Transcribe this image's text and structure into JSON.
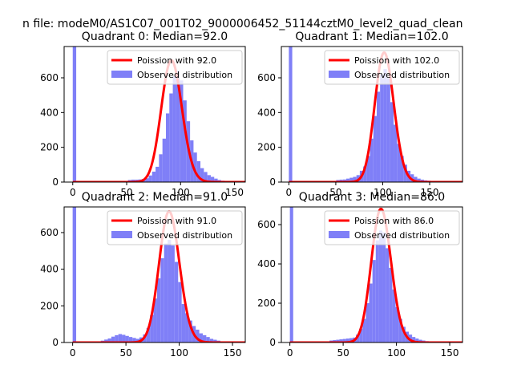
{
  "figure": {
    "suptitle": "n file: modeM0/AS1C07_001T02_9000006452_51144cztM0_level2_quad_clean"
  },
  "colors": {
    "fit_line": "#ff0000",
    "histogram": "#7f7ff7",
    "axes": "#000000",
    "legend_border": "#cccccc"
  },
  "chart_data": [
    {
      "type": "bar",
      "title": "Quadrant 0: Median=92.0",
      "xlim": [
        -8,
        160
      ],
      "ylim": [
        0,
        780
      ],
      "xticks": [
        0,
        50,
        100,
        150
      ],
      "yticks": [
        0,
        200,
        400,
        600
      ],
      "legend_position": "top-right",
      "bin_width": 3.2,
      "histogram": {
        "name": "Observed distribution",
        "x": [
          0,
          3.2,
          6.4,
          9.6,
          12.8,
          16,
          19.2,
          22.4,
          25.6,
          28.8,
          32,
          35.2,
          38.4,
          41.6,
          44.8,
          48,
          51.2,
          54.4,
          57.6,
          60.8,
          64,
          67.2,
          70.4,
          73.6,
          76.8,
          80,
          83.2,
          86.4,
          89.6,
          92.8,
          96,
          99.2,
          102.4,
          105.6,
          108.8,
          112,
          115.2,
          118.4,
          121.6,
          124.8,
          128,
          131.2,
          134.4,
          137.6,
          140.8,
          144,
          147.2,
          150.4
        ],
        "values": [
          780,
          0,
          0,
          0,
          0,
          0,
          0,
          0,
          0,
          0,
          0,
          0,
          0,
          0,
          0,
          0,
          12,
          14,
          14,
          15,
          18,
          22,
          38,
          60,
          88,
          160,
          250,
          395,
          510,
          610,
          640,
          585,
          470,
          350,
          240,
          170,
          120,
          80,
          58,
          40,
          30,
          20,
          12,
          8,
          5,
          3,
          2,
          2
        ]
      },
      "fit": {
        "name": "Poission with 92.0",
        "lambda": 92.0,
        "scale": 700
      }
    },
    {
      "type": "bar",
      "title": "Quadrant 1: Median=102.0",
      "xlim": [
        -8,
        185
      ],
      "ylim": [
        0,
        780
      ],
      "xticks": [
        0,
        50,
        100,
        150
      ],
      "yticks": [
        0,
        200,
        400,
        600
      ],
      "legend_position": "top-right",
      "bin_width": 3.6,
      "histogram": {
        "name": "Observed distribution",
        "x": [
          0,
          3.6,
          7.2,
          10.8,
          14.4,
          18,
          21.6,
          25.2,
          28.8,
          32.4,
          36,
          39.6,
          43.2,
          46.8,
          50.4,
          54,
          57.6,
          61.2,
          64.8,
          68.4,
          72,
          75.6,
          79.2,
          82.8,
          86.4,
          90,
          93.6,
          97.2,
          100.8,
          104.4,
          108,
          111.6,
          115.2,
          118.8,
          122.4,
          126,
          129.6,
          133.2,
          136.8,
          140.4,
          144,
          147.6,
          151.2,
          154.8,
          158.4,
          162,
          165.6,
          169.2
        ],
        "values": [
          780,
          0,
          0,
          0,
          0,
          0,
          0,
          0,
          0,
          0,
          0,
          0,
          0,
          0,
          12,
          14,
          15,
          20,
          25,
          30,
          40,
          65,
          90,
          150,
          250,
          380,
          520,
          620,
          650,
          600,
          460,
          330,
          220,
          150,
          100,
          65,
          45,
          30,
          20,
          14,
          10,
          8,
          6,
          4,
          3,
          2,
          2,
          1
        ]
      },
      "fit": {
        "name": "Poission with 102.0",
        "lambda": 102.0,
        "scale": 745
      }
    },
    {
      "type": "bar",
      "title": "Quadrant 2: Median=91.0",
      "xlim": [
        -8,
        162
      ],
      "ylim": [
        0,
        740
      ],
      "xticks": [
        0,
        50,
        100,
        150
      ],
      "yticks": [
        0,
        200,
        400,
        600
      ],
      "legend_position": "top-right",
      "bin_width": 3.3,
      "histogram": {
        "name": "Observed distribution",
        "x": [
          0,
          3.3,
          6.6,
          9.9,
          13.2,
          16.5,
          19.8,
          23.1,
          26.4,
          29.7,
          33,
          36.3,
          39.6,
          42.9,
          46.2,
          49.5,
          52.8,
          56.1,
          59.4,
          62.7,
          66,
          69.3,
          72.6,
          75.9,
          79.2,
          82.5,
          85.8,
          89.1,
          92.4,
          95.7,
          99,
          102.3,
          105.6,
          108.9,
          112.2,
          115.5,
          118.8,
          122.1,
          125.4,
          128.7,
          132,
          135.3,
          138.6,
          141.9,
          145.2,
          148.5,
          151.8,
          155.1
        ],
        "values": [
          740,
          0,
          0,
          0,
          0,
          0,
          0,
          0,
          10,
          16,
          22,
          32,
          40,
          46,
          42,
          36,
          30,
          25,
          20,
          28,
          44,
          80,
          150,
          240,
          350,
          460,
          540,
          560,
          530,
          440,
          330,
          210,
          160,
          120,
          90,
          70,
          50,
          40,
          30,
          20,
          15,
          10,
          6,
          4,
          3,
          2,
          1,
          1
        ]
      },
      "fit": {
        "name": "Poission with 91.0",
        "lambda": 91.0,
        "scale": 715
      }
    },
    {
      "type": "bar",
      "title": "Quadrant 3: Median=86.0",
      "xlim": [
        -8,
        162
      ],
      "ylim": [
        0,
        690
      ],
      "xticks": [
        0,
        50,
        100,
        150
      ],
      "yticks": [
        0,
        200,
        400,
        600
      ],
      "legend_position": "top-right",
      "bin_width": 3.1,
      "histogram": {
        "name": "Observed distribution",
        "x": [
          0,
          3.1,
          6.2,
          9.3,
          12.4,
          15.5,
          18.6,
          21.7,
          24.8,
          27.9,
          31,
          34.1,
          37.2,
          40.3,
          43.4,
          46.5,
          49.6,
          52.7,
          55.8,
          58.9,
          62,
          65.1,
          68.2,
          71.3,
          74.4,
          77.5,
          80.6,
          83.7,
          86.8,
          89.9,
          93,
          96.1,
          99.2,
          102.3,
          105.4,
          108.5,
          111.6,
          114.7,
          117.8,
          120.9,
          124,
          127.1,
          130.2,
          133.3,
          136.4,
          139.5,
          142.6,
          145.7
        ],
        "values": [
          690,
          0,
          0,
          0,
          0,
          0,
          0,
          0,
          0,
          0,
          0,
          0,
          10,
          12,
          14,
          16,
          18,
          20,
          22,
          25,
          40,
          70,
          120,
          200,
          300,
          420,
          520,
          570,
          560,
          480,
          380,
          270,
          180,
          120,
          80,
          55,
          40,
          28,
          20,
          14,
          10,
          7,
          5,
          3,
          2,
          2,
          1,
          1
        ]
      },
      "fit": {
        "name": "Poission with 86.0",
        "lambda": 86.0,
        "scale": 680
      }
    }
  ]
}
